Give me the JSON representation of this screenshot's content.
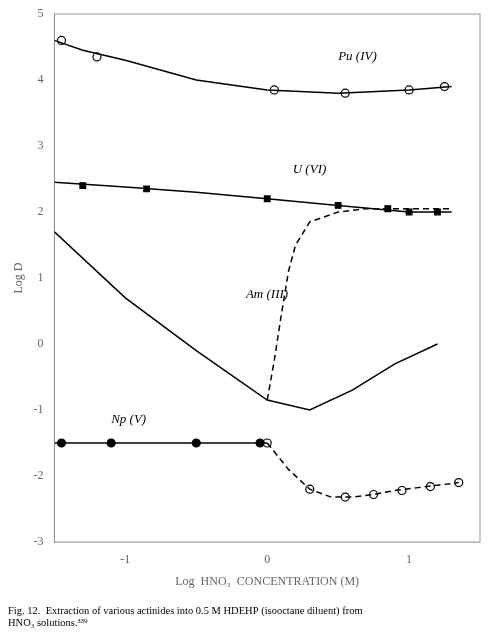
{
  "chart_data": {
    "type": "line",
    "title": [
      "Fig. 12.  Extraction of various actinides into 0.5 M HDEHP (isooctane diluent) from",
      "HNO₃ solutions.³³⁹"
    ],
    "xlabel": "Log  HNO₃  CONCENTRATION (M)",
    "ylabel": "Log D",
    "xlim": [
      -1.5,
      1.5
    ],
    "ylim": [
      -3,
      5
    ],
    "xticks": [
      -1,
      0,
      1
    ],
    "yticks": [
      -3,
      -2,
      -1,
      0,
      1,
      2,
      3,
      4,
      5
    ],
    "grid": false,
    "series": [
      {
        "x": [
          -1.5,
          -1.3,
          -1.0,
          -0.5,
          0.0,
          0.5,
          1.0,
          1.3
        ],
        "values": [
          4.6,
          4.45,
          4.3,
          4.0,
          3.85,
          3.8,
          3.85,
          3.9
        ],
        "color": "#000000",
        "marker": "none",
        "line_style": "solid"
      },
      {
        "x": [
          -1.45,
          -1.2,
          0.05,
          0.55,
          1.0,
          1.25
        ],
        "values": [
          4.6,
          4.35,
          3.85,
          3.8,
          3.85,
          3.9
        ],
        "color": "#000000",
        "marker": "open_circle",
        "line_style": "none"
      },
      {
        "x": [
          -1.5,
          -1.0,
          -0.5,
          0.0,
          0.5,
          1.0,
          1.3
        ],
        "values": [
          2.45,
          2.38,
          2.3,
          2.2,
          2.1,
          2.0,
          2.0
        ],
        "color": "#000000",
        "marker": "none",
        "line_style": "solid"
      },
      {
        "x": [
          -1.3,
          -0.85,
          0.0,
          0.5,
          0.85,
          1.0,
          1.2
        ],
        "values": [
          2.4,
          2.35,
          2.2,
          2.1,
          2.05,
          2.0,
          2.0
        ],
        "color": "#000000",
        "marker": "square",
        "line_style": "none"
      },
      {
        "x": [
          -1.5,
          -1.0,
          -0.5,
          0.0,
          0.3,
          0.6,
          0.9,
          1.2
        ],
        "values": [
          1.7,
          0.7,
          -0.1,
          -0.85,
          -1.0,
          -0.7,
          -0.3,
          0.0
        ],
        "color": "#000000",
        "marker": "none",
        "line_style": "solid"
      },
      {
        "x": [
          0.0,
          0.05,
          0.1,
          0.15,
          0.2,
          0.3,
          0.5,
          0.7,
          0.9,
          1.1,
          1.3
        ],
        "values": [
          -0.85,
          -0.25,
          0.45,
          1.1,
          1.5,
          1.85,
          2.0,
          2.05,
          2.05,
          2.05,
          2.05
        ],
        "color": "#000000",
        "marker": "none",
        "line_style": "dashed"
      },
      {
        "x": [
          -1.5,
          -1.0,
          -0.5,
          0.0
        ],
        "values": [
          -1.5,
          -1.5,
          -1.5,
          -1.5
        ],
        "color": "#000000",
        "marker": "none",
        "line_style": "solid"
      },
      {
        "x": [
          -1.45,
          -1.1,
          -0.5,
          -0.05
        ],
        "values": [
          -1.5,
          -1.5,
          -1.5,
          -1.5
        ],
        "color": "#000000",
        "marker": "circle",
        "line_style": "none"
      },
      {
        "x": [
          0.0,
          0.15,
          0.3,
          0.45,
          0.6,
          0.75,
          0.9,
          1.05,
          1.2,
          1.35
        ],
        "values": [
          -1.5,
          -1.9,
          -2.2,
          -2.32,
          -2.32,
          -2.28,
          -2.22,
          -2.18,
          -2.14,
          -2.1
        ],
        "color": "#000000",
        "marker": "none",
        "line_style": "dashed"
      },
      {
        "x": [
          0.0,
          0.3,
          0.55,
          0.75,
          0.95,
          1.15,
          1.35
        ],
        "values": [
          -1.5,
          -2.2,
          -2.32,
          -2.28,
          -2.22,
          -2.16,
          -2.1
        ],
        "color": "#000000",
        "marker": "open_circle",
        "line_style": "none"
      }
    ],
    "annotations": [
      {
        "text": "Pu (IV)",
        "x": 0.5,
        "y": 4.25
      },
      {
        "text": "U (VI)",
        "x": 0.18,
        "y": 2.55
      },
      {
        "text": "Am (III)",
        "x": -0.15,
        "y": 0.65
      },
      {
        "text": "Np (V)",
        "x": -1.1,
        "y": -1.25
      }
    ]
  }
}
